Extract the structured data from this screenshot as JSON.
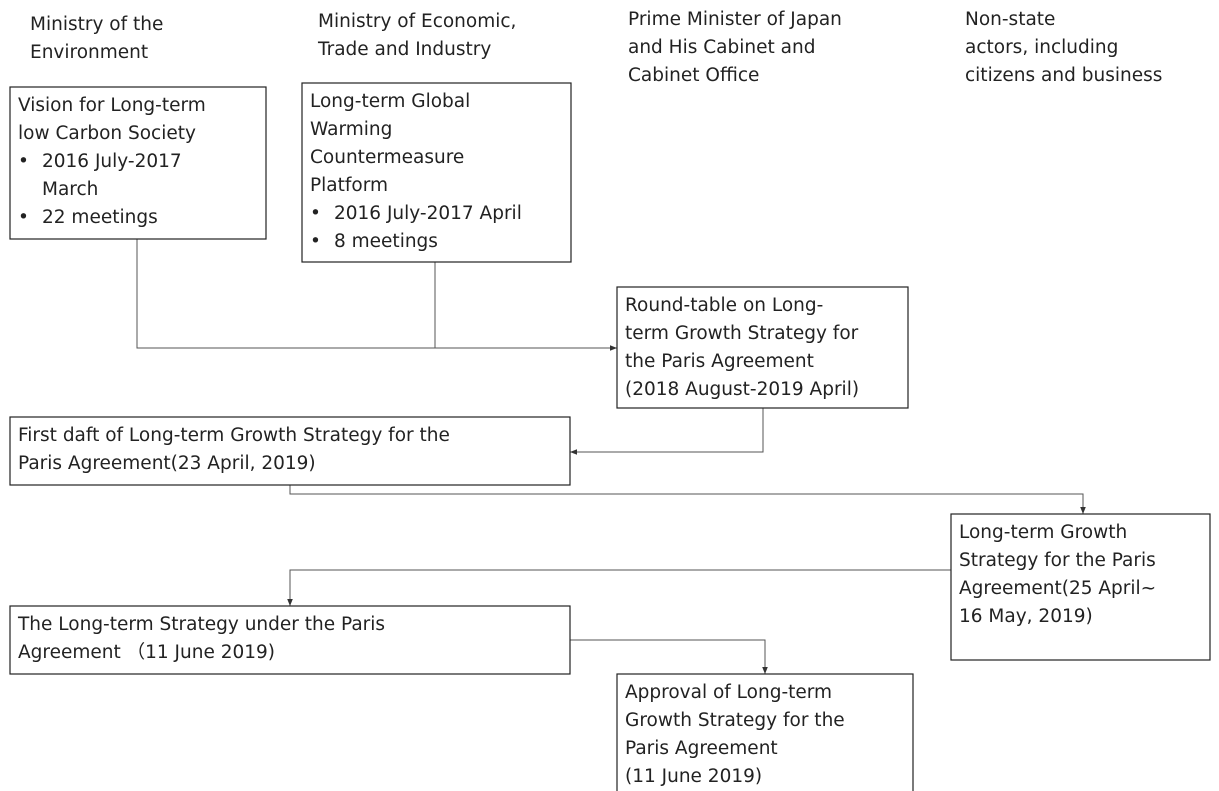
{
  "columns": [
    {
      "lines": [
        "Ministry of the",
        "Environment"
      ]
    },
    {
      "lines": [
        "Ministry of Economic,",
        "Trade and Industry"
      ]
    },
    {
      "lines": [
        "Prime Minister of Japan",
        "and His Cabinet and",
        "Cabinet Office"
      ]
    },
    {
      "lines": [
        "Non-state",
        "actors, including",
        "citizens and business"
      ]
    }
  ],
  "nodes": [
    {
      "lines": [
        "Vision for Long-term",
        "low Carbon Society"
      ],
      "bullets": [
        [
          "2016 July-2017",
          "March"
        ],
        [
          "22 meetings"
        ]
      ]
    },
    {
      "lines": [
        "Long-term Global",
        "Warming",
        "Countermeasure",
        "Platform"
      ],
      "bullets": [
        [
          "2016 July-2017 April"
        ],
        [
          "8 meetings"
        ]
      ]
    },
    {
      "lines": [
        "Round-table on Long-",
        "term Growth Strategy for",
        "the Paris Agreement",
        "(2018 August-2019 April)"
      ]
    },
    {
      "lines": [
        "First daft of Long-term Growth Strategy for the",
        "Paris Agreement(23 April, 2019)"
      ]
    },
    {
      "lines": [
        "Long-term Growth",
        "Strategy for the Paris",
        "Agreement(25 April~",
        "16 May, 2019)"
      ]
    },
    {
      "lines": [
        "The Long-term Strategy under the Paris",
        "Agreement （11 June 2019)"
      ]
    },
    {
      "lines": [
        "Approval of Long-term",
        "Growth Strategy for the",
        "Paris Agreement",
        "(11 June 2019)"
      ]
    }
  ]
}
